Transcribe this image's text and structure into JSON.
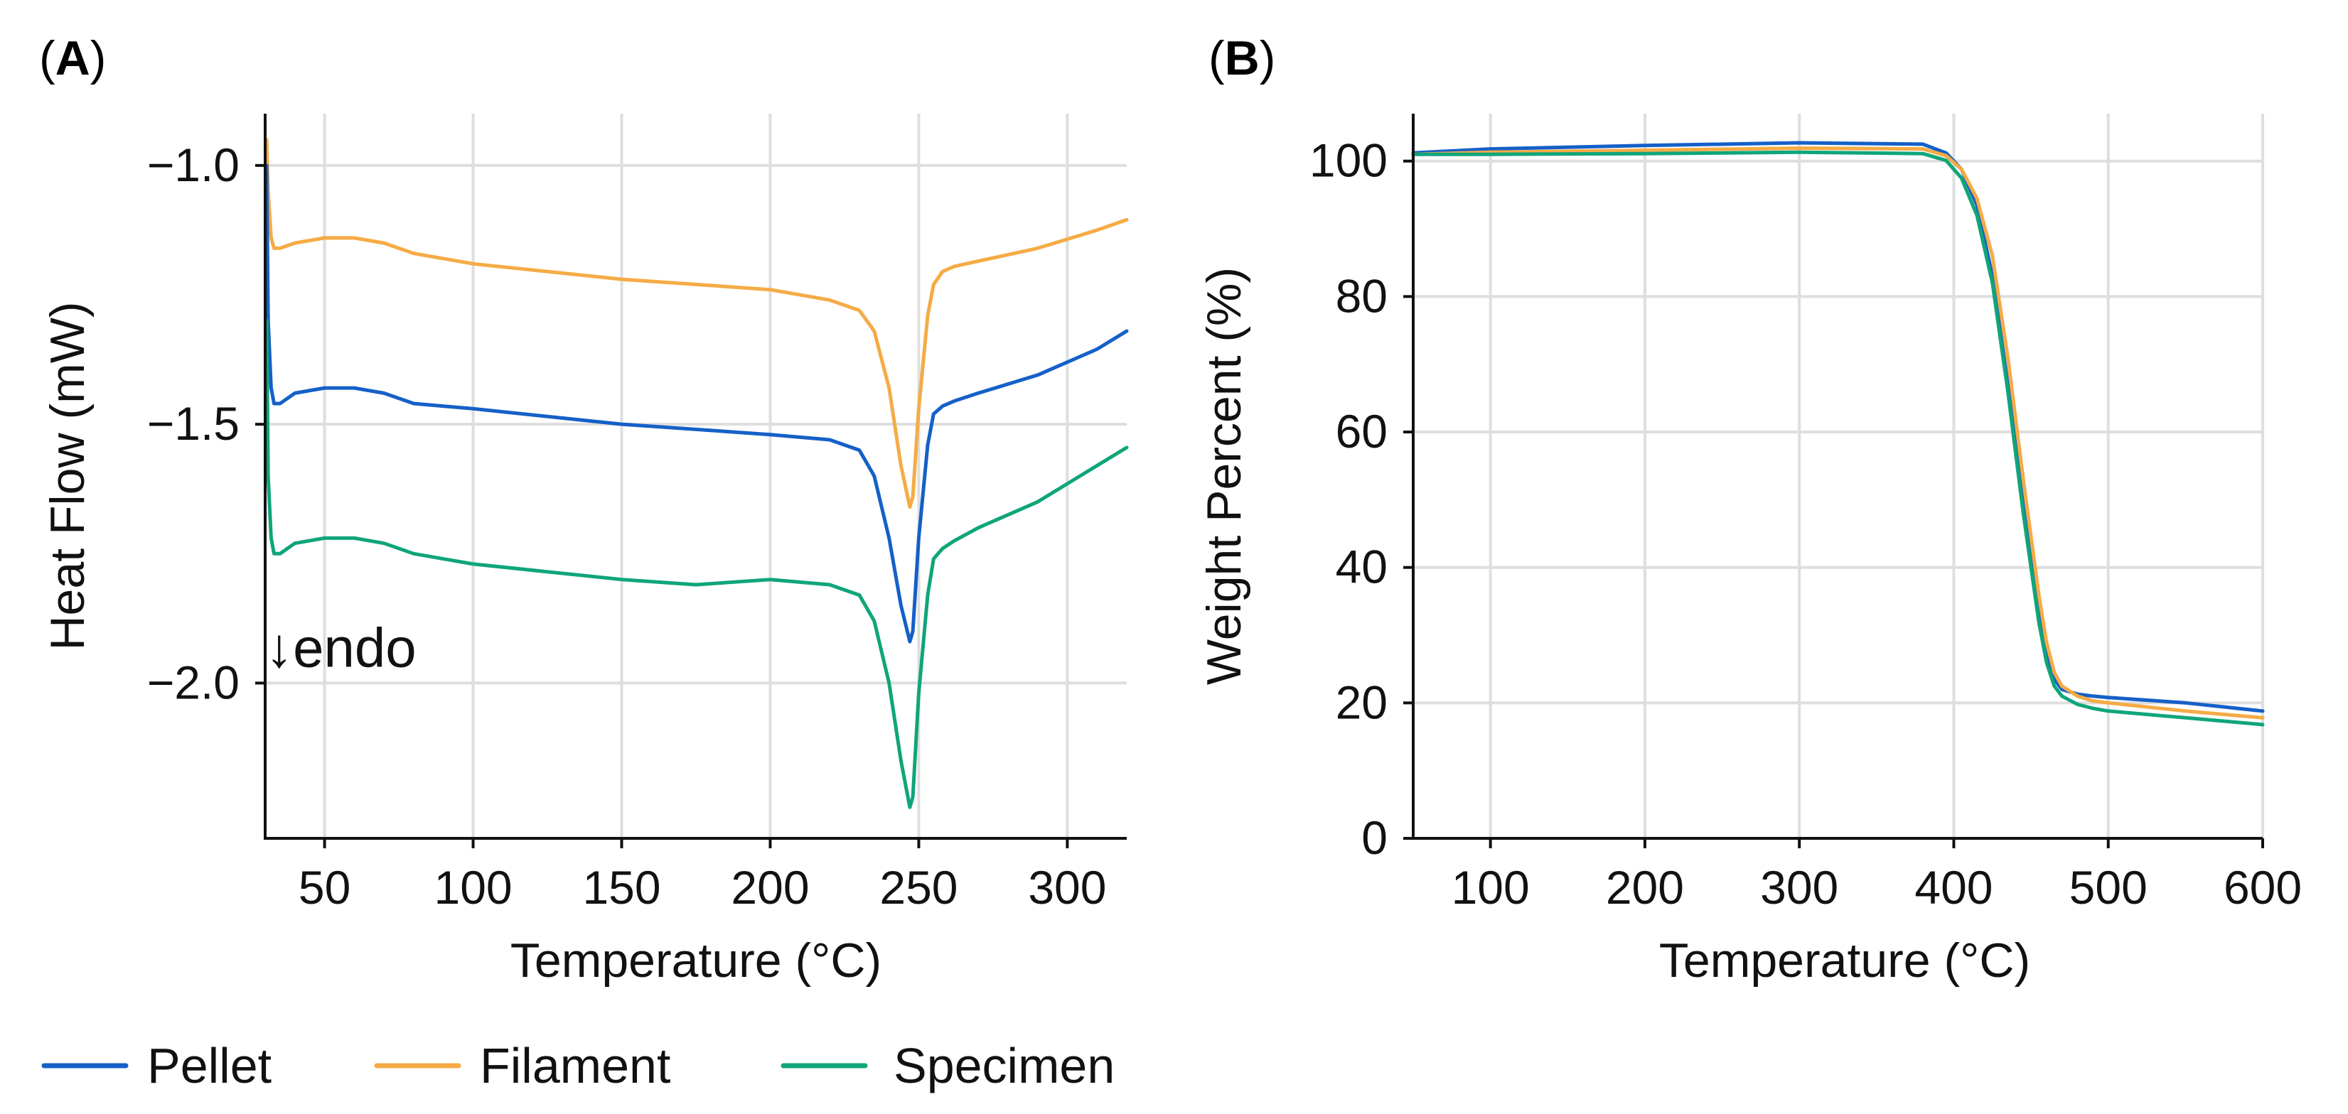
{
  "colors": {
    "pellet": "#1560c8",
    "filament": "#f5ab45",
    "specimen": "#0fa57a"
  },
  "legend": [
    {
      "name": "Pellet",
      "color_key": "pellet"
    },
    {
      "name": "Filament",
      "color_key": "filament"
    },
    {
      "name": "Specimen",
      "color_key": "specimen"
    }
  ],
  "chart_data": [
    {
      "panel": "A",
      "type": "line",
      "xlabel": "Temperature (°C)",
      "ylabel": "Heat Flow (mW)",
      "xlim": [
        30,
        320
      ],
      "ylim": [
        -2.3,
        -0.9
      ],
      "xticks": [
        50,
        100,
        150,
        200,
        250,
        300
      ],
      "xtick_labels": [
        "50",
        "100",
        "150",
        "200",
        "250",
        "300"
      ],
      "yticks": [
        -1.0,
        -1.5,
        -2.0
      ],
      "ytick_labels": [
        "−1.0",
        "−1.5",
        "−2.0"
      ],
      "grid": true,
      "annotation": {
        "text": "↓endo",
        "x": 31,
        "y": -1.93
      },
      "series": [
        {
          "name": "Filament",
          "color_key": "filament",
          "x": [
            30.5,
            31,
            32,
            33,
            35,
            40,
            50,
            60,
            70,
            80,
            100,
            150,
            200,
            220,
            230,
            235,
            240,
            244,
            247,
            248,
            250,
            253,
            255,
            258,
            262,
            270,
            290,
            310,
            320
          ],
          "y": [
            -0.95,
            -1.05,
            -1.14,
            -1.16,
            -1.16,
            -1.15,
            -1.14,
            -1.14,
            -1.15,
            -1.17,
            -1.19,
            -1.22,
            -1.24,
            -1.26,
            -1.28,
            -1.32,
            -1.43,
            -1.58,
            -1.66,
            -1.64,
            -1.47,
            -1.29,
            -1.23,
            -1.205,
            -1.195,
            -1.185,
            -1.16,
            -1.125,
            -1.105
          ]
        },
        {
          "name": "Pellet",
          "color_key": "pellet",
          "x": [
            30.5,
            31,
            32,
            33,
            35,
            40,
            50,
            60,
            70,
            80,
            100,
            150,
            200,
            220,
            230,
            235,
            240,
            244,
            247,
            248,
            250,
            253,
            255,
            258,
            262,
            270,
            290,
            310,
            320
          ],
          "y": [
            -1.0,
            -1.3,
            -1.43,
            -1.46,
            -1.46,
            -1.44,
            -1.43,
            -1.43,
            -1.44,
            -1.46,
            -1.47,
            -1.5,
            -1.52,
            -1.53,
            -1.55,
            -1.6,
            -1.72,
            -1.85,
            -1.92,
            -1.9,
            -1.72,
            -1.54,
            -1.48,
            -1.465,
            -1.455,
            -1.44,
            -1.405,
            -1.355,
            -1.32
          ]
        },
        {
          "name": "Specimen",
          "color_key": "specimen",
          "x": [
            30.5,
            31,
            32,
            33,
            35,
            40,
            50,
            60,
            70,
            80,
            100,
            150,
            175,
            200,
            220,
            230,
            235,
            240,
            244,
            247,
            248,
            250,
            253,
            255,
            258,
            262,
            270,
            290,
            310,
            320
          ],
          "y": [
            -1.3,
            -1.6,
            -1.72,
            -1.75,
            -1.75,
            -1.73,
            -1.72,
            -1.72,
            -1.73,
            -1.75,
            -1.77,
            -1.8,
            -1.81,
            -1.8,
            -1.81,
            -1.83,
            -1.88,
            -2.0,
            -2.15,
            -2.24,
            -2.22,
            -2.02,
            -1.83,
            -1.76,
            -1.74,
            -1.725,
            -1.7,
            -1.65,
            -1.58,
            -1.545
          ]
        }
      ]
    },
    {
      "panel": "B",
      "type": "line",
      "xlabel": "Temperature (°C)",
      "ylabel": "Weight Percent (%)",
      "xlim": [
        50,
        600
      ],
      "ylim": [
        0,
        107
      ],
      "xticks": [
        100,
        200,
        300,
        400,
        500,
        600
      ],
      "xtick_labels": [
        "100",
        "200",
        "300",
        "400",
        "500",
        "600"
      ],
      "yticks": [
        0,
        20,
        40,
        60,
        80,
        100
      ],
      "ytick_labels": [
        "0",
        "20",
        "40",
        "60",
        "80",
        "100"
      ],
      "grid": true,
      "series": [
        {
          "name": "Pellet",
          "color_key": "pellet",
          "x": [
            50,
            100,
            200,
            300,
            380,
            395,
            405,
            415,
            425,
            435,
            445,
            455,
            460,
            465,
            470,
            480,
            490,
            500,
            550,
            600
          ],
          "y": [
            101.2,
            101.8,
            102.3,
            102.7,
            102.5,
            101.2,
            98.8,
            93.5,
            83,
            67,
            49,
            33,
            27,
            23.5,
            22,
            21.3,
            21,
            20.8,
            20,
            18.8
          ]
        },
        {
          "name": "Filament",
          "color_key": "filament",
          "x": [
            50,
            100,
            200,
            300,
            380,
            395,
            405,
            415,
            425,
            435,
            445,
            455,
            460,
            465,
            470,
            480,
            490,
            500,
            550,
            600
          ],
          "y": [
            101,
            101.3,
            101.6,
            101.9,
            101.8,
            100.8,
            98.8,
            94.5,
            86,
            71,
            53,
            36,
            29,
            24.5,
            22.5,
            21,
            20.3,
            20,
            18.8,
            17.8
          ]
        },
        {
          "name": "Specimen",
          "color_key": "specimen",
          "x": [
            50,
            100,
            200,
            300,
            380,
            395,
            405,
            415,
            425,
            435,
            445,
            455,
            460,
            465,
            470,
            480,
            490,
            500,
            550,
            600
          ],
          "y": [
            101,
            101,
            101.1,
            101.3,
            101.1,
            100.1,
            97.5,
            92,
            82,
            66,
            48,
            32,
            26,
            22.5,
            21,
            19.8,
            19.2,
            18.8,
            17.8,
            16.8
          ]
        }
      ]
    }
  ]
}
